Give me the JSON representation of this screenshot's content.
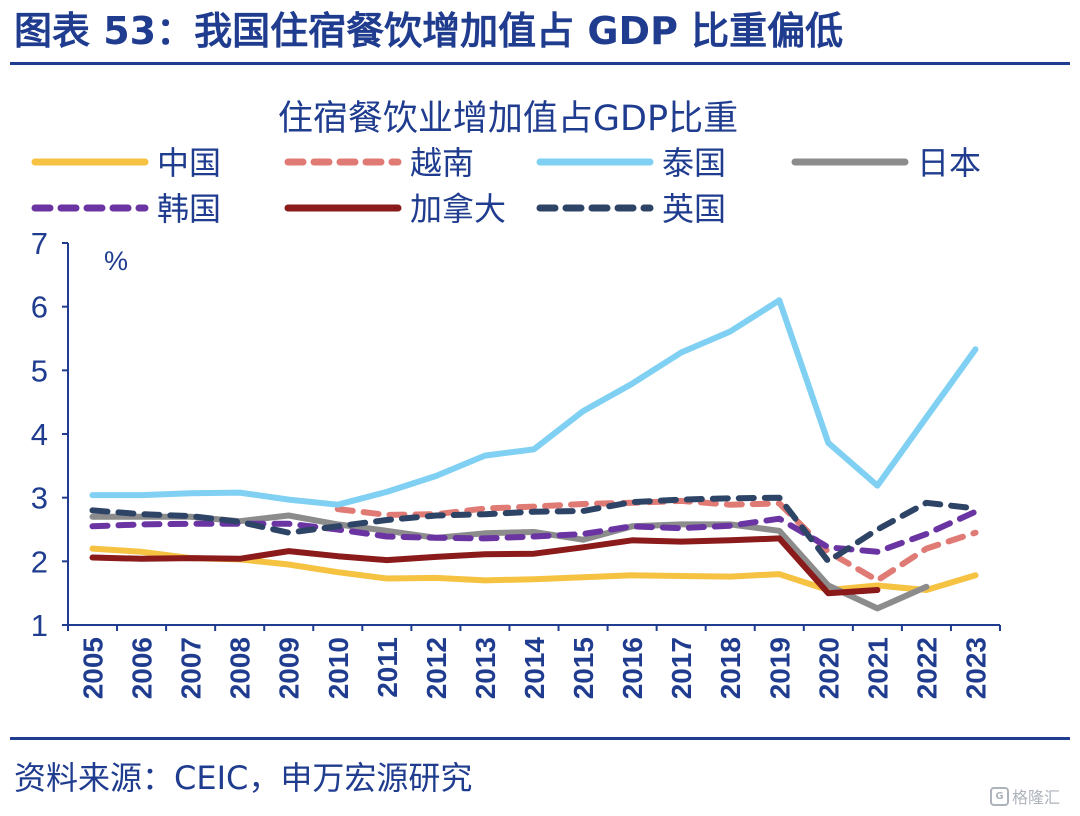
{
  "header": {
    "title": "图表 53：我国住宿餐饮增加值占 GDP 比重偏低"
  },
  "source": "资料来源：CEIC，申万宏源研究",
  "watermark": {
    "text": "格隆汇",
    "icon": "G"
  },
  "colors": {
    "brand": "#1f3c8f"
  },
  "chart_data": {
    "type": "line",
    "title": "住宿餐饮业增加值占GDP比重",
    "ylabel": "%",
    "xlabel": "",
    "ylim": [
      1,
      7
    ],
    "yticks": [
      1,
      2,
      3,
      4,
      5,
      6,
      7
    ],
    "grid": false,
    "legend_position": "top",
    "categories": [
      "2005",
      "2006",
      "2007",
      "2008",
      "2009",
      "2010",
      "2011",
      "2012",
      "2013",
      "2014",
      "2015",
      "2016",
      "2017",
      "2018",
      "2019",
      "2020",
      "2021",
      "2022",
      "2023"
    ],
    "series": [
      {
        "name": "中国",
        "color": "#f5c242",
        "style": "solid",
        "values": [
          2.2,
          2.15,
          2.05,
          2.03,
          1.95,
          1.83,
          1.73,
          1.74,
          1.7,
          1.72,
          1.75,
          1.78,
          1.77,
          1.76,
          1.8,
          1.55,
          1.62,
          1.55,
          1.78
        ]
      },
      {
        "name": "越南",
        "color": "#e07a74",
        "style": "dashed",
        "values": [
          null,
          null,
          null,
          null,
          null,
          2.82,
          2.73,
          2.74,
          2.83,
          2.86,
          2.9,
          2.92,
          2.95,
          2.89,
          2.91,
          2.15,
          1.7,
          2.2,
          2.45
        ]
      },
      {
        "name": "泰国",
        "color": "#7fd0f2",
        "style": "solid",
        "values": [
          3.04,
          3.04,
          3.07,
          3.08,
          2.97,
          2.89,
          3.09,
          3.34,
          3.66,
          3.76,
          4.36,
          4.79,
          5.28,
          5.61,
          6.1,
          3.86,
          3.19,
          4.26,
          5.33
        ]
      },
      {
        "name": "日本",
        "color": "#8c8c8c",
        "style": "solid",
        "values": [
          2.7,
          2.7,
          2.7,
          2.63,
          2.72,
          2.58,
          2.48,
          2.37,
          2.44,
          2.46,
          2.34,
          2.55,
          2.58,
          2.58,
          2.48,
          1.62,
          1.26,
          1.6,
          null
        ]
      },
      {
        "name": "韩国",
        "color": "#6a35a2",
        "style": "dashed",
        "values": [
          2.55,
          2.58,
          2.59,
          2.59,
          2.59,
          2.5,
          2.39,
          2.37,
          2.36,
          2.39,
          2.43,
          2.55,
          2.52,
          2.56,
          2.67,
          2.22,
          2.15,
          2.43,
          2.78
        ]
      },
      {
        "name": "加拿大",
        "color": "#8b1a1a",
        "style": "solid",
        "values": [
          2.06,
          2.04,
          2.05,
          2.04,
          2.16,
          2.08,
          2.02,
          2.07,
          2.11,
          2.12,
          2.22,
          2.33,
          2.31,
          2.33,
          2.36,
          1.5,
          1.55,
          null,
          null
        ]
      },
      {
        "name": "英国",
        "color": "#2e4466",
        "style": "dashed",
        "values": [
          2.8,
          2.74,
          2.71,
          2.62,
          2.45,
          2.55,
          2.65,
          2.72,
          2.74,
          2.78,
          2.79,
          2.93,
          2.97,
          2.99,
          3.0,
          2.0,
          2.5,
          2.92,
          2.83
        ]
      }
    ]
  }
}
